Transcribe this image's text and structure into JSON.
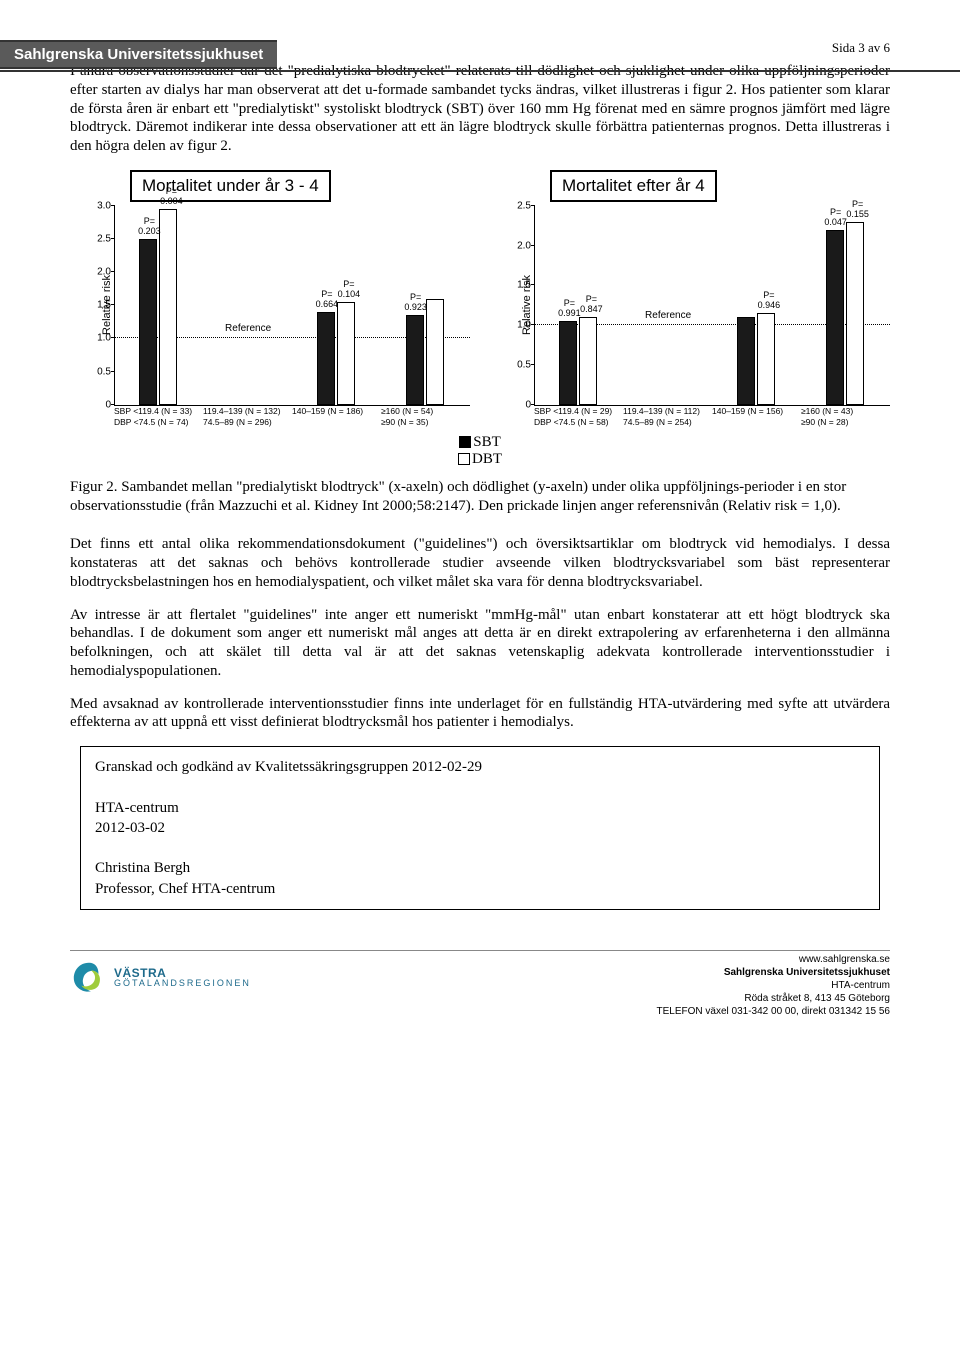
{
  "header": {
    "org": "Sahlgrenska Universitetssjukhuset"
  },
  "page_indicator": "Sida 3 av 6",
  "paragraphs": {
    "p1": "I andra observationsstudier där det \"predialytiska blodtrycket\" relaterats till dödlighet och sjuklighet under olika uppföljningsperioder efter starten av dialys har man observerat att det u-formade sambandet tycks ändras, vilket illustreras i figur 2. Hos patienter som klarar de första åren är enbart ett \"predialytiskt\" systoliskt blodtryck (SBT) över 160 mm Hg förenat med en sämre prognos jämfört med lägre blodtryck. Däremot indikerar inte dessa observationer att ett än lägre blodtryck skulle förbättra patienternas prognos. Detta illustreras i den högra delen av figur 2.",
    "caption": "Figur 2. Sambandet mellan \"predialytiskt blodtryck\" (x-axeln) och dödlighet (y-axeln) under olika uppföljnings-perioder i en stor observationsstudie (från Mazzuchi et al. Kidney Int 2000;58:2147). Den prickade linjen anger referensnivån (Relativ risk = 1,0).",
    "p2": "Det finns ett antal olika rekommendationsdokument (\"guidelines\") och översiktsartiklar om blodtryck vid hemodialys. I dessa konstateras att det saknas och behövs kontrollerade studier avseende vilken blodtrycksvariabel som bäst representerar blodtrycksbelastningen hos en hemodialyspatient, och vilket målet ska vara för denna blodtrycksvariabel.",
    "p3": "Av intresse är att flertalet \"guidelines\" inte anger ett numeriskt \"mmHg-mål\" utan enbart konstaterar att ett högt blodtryck ska behandlas. I de dokument som anger ett numeriskt mål anges att detta är en direkt extrapolering av erfarenheterna i den allmänna befolkningen, och att skälet till detta val är att det saknas vetenskaplig adekvata kontrollerade interventionsstudier i hemodialyspopulationen.",
    "p4": "Med avsaknad av kontrollerade interventionsstudier finns inte underlaget för en fullständig HTA-utvärdering med syfte att utvärdera effekterna av att uppnå ett visst definierat blodtrycksmål hos patienter i hemodialys."
  },
  "legend": {
    "sbt": "SBT",
    "dbt": "DBT"
  },
  "approval": {
    "line1": "Granskad och godkänd av Kvalitetssäkringsgruppen 2012-02-29",
    "unit": "HTA-centrum",
    "date": "2012-03-02",
    "name": "Christina Bergh",
    "title": "Professor, Chef HTA-centrum"
  },
  "footer": {
    "logo_line1": "VÄSTRA",
    "logo_line2": "GÖTALANDSREGIONEN",
    "url": "www.sahlgrenska.se",
    "org": "Sahlgrenska Universitetssjukhuset",
    "dept": "HTA-centrum",
    "addr": "Röda stråket 8, 413 45 Göteborg",
    "phone": "TELEFON växel 031-342 00 00, direkt 031342 15 56"
  },
  "chart_left": {
    "title": "Mortalitet under år 3 - 4",
    "ylabel": "Relative risk",
    "ylim": [
      0,
      3.0
    ],
    "yticks": [
      0,
      0.5,
      1.0,
      1.5,
      2.0,
      2.5,
      3.0
    ],
    "reference_y": 1.0,
    "bar_colors": {
      "sbt": "#1a1a1a",
      "dbt": "#ffffff"
    },
    "groups": [
      {
        "sbt": 2.5,
        "dbt": 2.95,
        "p_sbt": "P= 0.203",
        "p_dbt": "P= 0.004",
        "xlabel_top": "SBP <119.4 (N = 33)",
        "xlabel_bot": "DBP <74.5 (N = 74)"
      },
      {
        "sbt": null,
        "dbt": null,
        "ref_label": "Reference",
        "xlabel_top": "119.4–139 (N = 132)",
        "xlabel_bot": "74.5–89 (N = 296)"
      },
      {
        "sbt": 1.4,
        "dbt": 1.55,
        "p_sbt": "P= 0.664",
        "p_dbt": "P= 0.104",
        "xlabel_top": "140–159 (N = 186)",
        "xlabel_bot": ""
      },
      {
        "sbt": 1.35,
        "dbt": 1.6,
        "p_sbt": "P= 0.923",
        "p_dbt": "",
        "xlabel_top": "≥160 (N = 54)",
        "xlabel_bot": "≥90 (N = 35)"
      }
    ]
  },
  "chart_right": {
    "title": "Mortalitet efter år 4",
    "ylabel": "Relative risk",
    "ylim": [
      0,
      2.5
    ],
    "yticks": [
      0,
      0.5,
      1.0,
      1.5,
      2.0,
      2.5
    ],
    "reference_y": 1.0,
    "bar_colors": {
      "sbt": "#1a1a1a",
      "dbt": "#ffffff"
    },
    "groups": [
      {
        "sbt": 1.05,
        "dbt": 1.1,
        "p_sbt": "P= 0.991",
        "p_dbt": "P= 0.847",
        "xlabel_top": "SBP <119.4 (N = 29)",
        "xlabel_bot": "DBP <74.5 (N = 58)"
      },
      {
        "sbt": null,
        "dbt": null,
        "ref_label": "Reference",
        "xlabel_top": "119.4–139 (N = 112)",
        "xlabel_bot": "74.5–89 (N = 254)"
      },
      {
        "sbt": 1.1,
        "dbt": 1.15,
        "p_sbt": "",
        "p_dbt": "P= 0.946",
        "xlabel_top": "140–159 (N = 156)",
        "xlabel_bot": ""
      },
      {
        "sbt": 2.2,
        "dbt": 2.3,
        "p_sbt": "P= 0.047",
        "p_dbt": "P= 0.155",
        "xlabel_top": "≥160 (N = 43)",
        "xlabel_bot": "≥90 (N = 28)"
      }
    ]
  }
}
